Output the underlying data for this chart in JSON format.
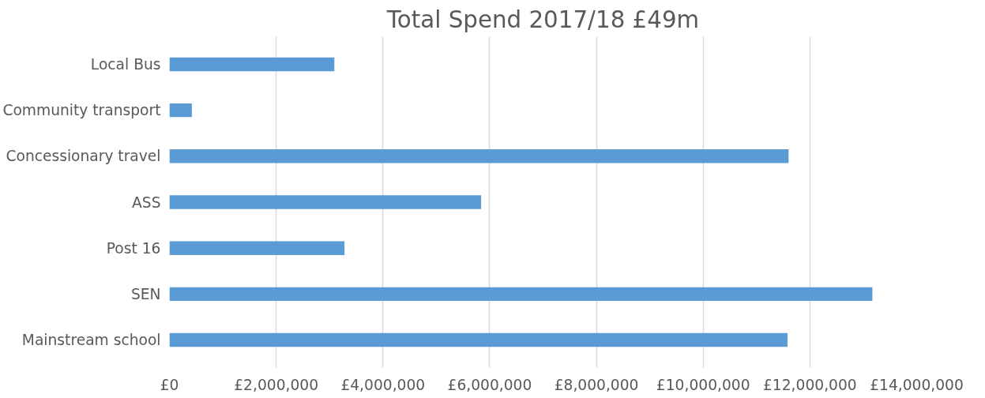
{
  "chart_data": {
    "type": "bar",
    "orientation": "horizontal",
    "title": "Total Spend 2017/18 £49m",
    "categories": [
      "Local Bus",
      "Community transport",
      "Concessionary travel",
      "ASS",
      "Post 16",
      "SEN",
      "Mainstream school"
    ],
    "values": [
      3090000,
      420000,
      11600000,
      5840000,
      3280000,
      13170000,
      11580000
    ],
    "color": "#5b9bd5",
    "xlim": [
      0,
      14000000
    ],
    "xticks": [
      {
        "value": 0,
        "label": "£0"
      },
      {
        "value": 2000000,
        "label": "£2,000,000"
      },
      {
        "value": 4000000,
        "label": "£4,000,000"
      },
      {
        "value": 6000000,
        "label": "£6,000,000"
      },
      {
        "value": 8000000,
        "label": "£8,000,000"
      },
      {
        "value": 10000000,
        "label": "£10,000,000"
      },
      {
        "value": 12000000,
        "label": "£12,000,000"
      },
      {
        "value": 14000000,
        "label": "£14,000,000"
      }
    ],
    "grid": "x"
  }
}
